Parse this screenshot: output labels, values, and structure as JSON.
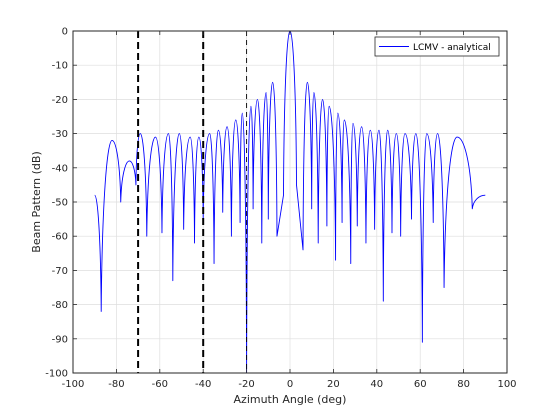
{
  "chart_data": {
    "type": "line",
    "title": "",
    "xlabel": "Azimuth Angle (deg)",
    "ylabel": "Beam Pattern (dB)",
    "xlim": [
      -100,
      100
    ],
    "ylim": [
      -100,
      0
    ],
    "xticks": [
      -100,
      -80,
      -60,
      -40,
      -20,
      0,
      20,
      40,
      60,
      80,
      100
    ],
    "yticks": [
      0,
      -10,
      -20,
      -30,
      -40,
      -50,
      -60,
      -70,
      -80,
      -90,
      -100
    ],
    "xtick_labels": [
      "-100",
      "-80",
      "-60",
      "-40",
      "-20",
      "0",
      "20",
      "40",
      "60",
      "80",
      "100"
    ],
    "ytick_labels": [
      "0",
      "-10",
      "-20",
      "-30",
      "-40",
      "-50",
      "-60",
      "-70",
      "-80",
      "-90",
      "-100"
    ],
    "grid": true,
    "legend_position": "top-right",
    "series": [
      {
        "name": "LCMV - analytical",
        "color": "#0000ff",
        "x_range": [
          -90,
          90
        ],
        "sidelobe_peaks": [
          [
            -90,
            -48
          ],
          [
            -82,
            -32
          ],
          [
            -74,
            -38
          ],
          [
            -69,
            -30
          ],
          [
            -62,
            -31
          ],
          [
            -56,
            -30
          ],
          [
            -51,
            -30
          ],
          [
            -46,
            -31
          ],
          [
            -42,
            -31
          ],
          [
            -37,
            -30
          ],
          [
            -33,
            -29
          ],
          [
            -29,
            -28
          ],
          [
            -25,
            -26
          ],
          [
            -22,
            -24
          ],
          [
            -18,
            -22
          ],
          [
            -15,
            -20
          ],
          [
            -11,
            -18
          ],
          [
            -8,
            -15
          ],
          [
            0,
            0
          ],
          [
            8,
            -15
          ],
          [
            11,
            -18
          ],
          [
            15,
            -20
          ],
          [
            18,
            -22
          ],
          [
            22,
            -24
          ],
          [
            25,
            -26
          ],
          [
            29,
            -27
          ],
          [
            33,
            -28
          ],
          [
            37,
            -29
          ],
          [
            41,
            -29
          ],
          [
            45,
            -29
          ],
          [
            49,
            -30
          ],
          [
            53,
            -30
          ],
          [
            58,
            -30
          ],
          [
            63,
            -30
          ],
          [
            68,
            -30
          ],
          [
            77,
            -31
          ],
          [
            90,
            -48
          ]
        ],
        "nulls": [
          [
            -87,
            -82
          ],
          [
            -78,
            -50
          ],
          [
            -71,
            -45
          ],
          [
            -66,
            -60
          ],
          [
            -59,
            -59
          ],
          [
            -54,
            -73
          ],
          [
            -49,
            -58
          ],
          [
            -44,
            -62
          ],
          [
            -40,
            -55
          ],
          [
            -35,
            -68
          ],
          [
            -31,
            -53
          ],
          [
            -27,
            -60
          ],
          [
            -23,
            -56
          ],
          [
            -20,
            -100
          ],
          [
            -17,
            -52
          ],
          [
            -13,
            -62
          ],
          [
            -10,
            -55
          ],
          [
            -6,
            -60
          ],
          [
            -3,
            -48
          ],
          [
            3,
            -45
          ],
          [
            6,
            -64
          ],
          [
            10,
            -52
          ],
          [
            13,
            -62
          ],
          [
            17,
            -57
          ],
          [
            21,
            -67
          ],
          [
            24,
            -56
          ],
          [
            28,
            -68
          ],
          [
            31,
            -57
          ],
          [
            35,
            -62
          ],
          [
            39,
            -58
          ],
          [
            43,
            -79
          ],
          [
            47,
            -59
          ],
          [
            51,
            -60
          ],
          [
            56,
            -55
          ],
          [
            61,
            -91
          ],
          [
            66,
            -56
          ],
          [
            71,
            -75
          ],
          [
            84,
            -52
          ]
        ]
      }
    ],
    "reference_lines": [
      {
        "x": -70,
        "style": "dashed",
        "weight": "bold"
      },
      {
        "x": -40,
        "style": "dashed",
        "weight": "bold"
      },
      {
        "x": -20,
        "style": "dashed",
        "weight": "thin"
      }
    ]
  }
}
